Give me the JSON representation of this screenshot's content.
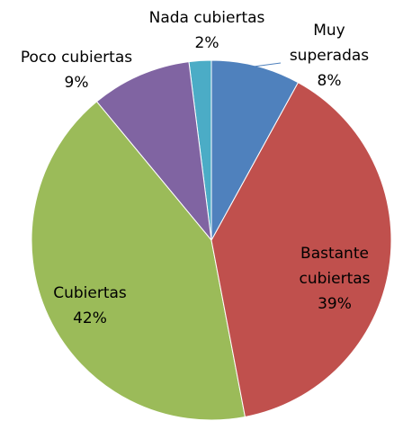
{
  "chart_data": {
    "type": "pie",
    "categories": [
      "Muy superadas",
      "Bastante cubiertas",
      "Cubiertas",
      "Poco cubiertas",
      "Nada cubiertas"
    ],
    "values": [
      8,
      39,
      42,
      9,
      2
    ],
    "value_labels": [
      "8%",
      "39%",
      "42%",
      "9%",
      "2%"
    ],
    "colors": [
      "#4f81bd",
      "#c0504d",
      "#9bbb59",
      "#8064a2",
      "#4bacc6"
    ]
  }
}
